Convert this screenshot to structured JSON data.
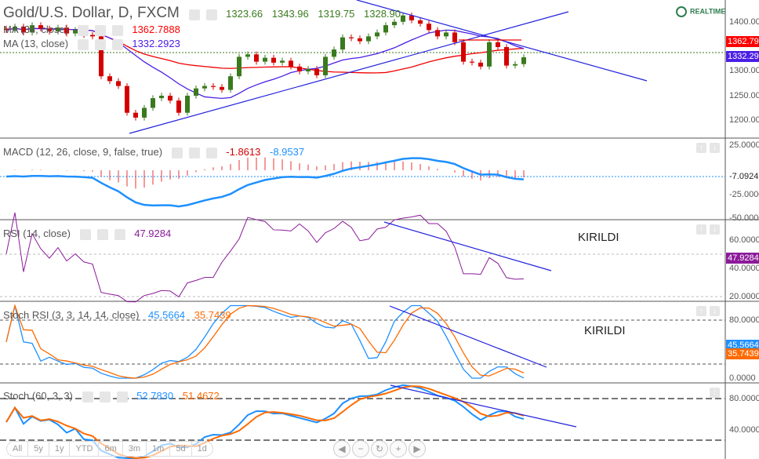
{
  "header": {
    "title": "Gold/U.S. Dollar, D, FXCM",
    "open": "1323.66",
    "high": "1343.96",
    "low": "1319.75",
    "close": "1328.90",
    "realtime": "REALTIME"
  },
  "ma34": {
    "label": "MA (34, close)",
    "value": "1362.7888",
    "tag": "1362.79"
  },
  "ma13": {
    "label": "MA (13, close)",
    "value": "1332.2923",
    "tag": "1332.29"
  },
  "macd": {
    "label": "MACD (12, 26, close, 9, false, true)",
    "hist": "-1.8613",
    "macd": "-8.9537",
    "tag": "-7.0924"
  },
  "rsi": {
    "label": "RSI (14, close)",
    "value": "47.9284",
    "tag": "47.9284"
  },
  "stochrsi": {
    "label": "Stoch RSI (3, 3, 14, 14, close)",
    "k": "45.5664",
    "d": "35.7439",
    "tagk": "45.5664",
    "tagd": "35.7439"
  },
  "stoch": {
    "label": "Stoch (60, 3, 3)",
    "k": "52.7830",
    "d": "51.4672"
  },
  "annotations": {
    "rsi": "KIRILDI",
    "stochrsi": "KIRILDI"
  },
  "ranges": [
    "All",
    "5y",
    "1y",
    "YTD",
    "6m",
    "3m",
    "1m",
    "5d",
    "1d"
  ],
  "nav": [
    "◀",
    "−",
    "↻",
    "+",
    "▶"
  ],
  "colors": {
    "up": "#3a7a1e",
    "down": "#d40000",
    "ma34": "#f00000",
    "ma13": "#4b1ee6",
    "macd": "#1e90ff",
    "rsi": "#8b1a9a",
    "stochk": "#1e90ff",
    "stochd": "#ff6a00",
    "trend": "#2222dd"
  },
  "chart_data": {
    "type": "candlestick",
    "title": "Gold/U.S. Dollar, D, FXCM",
    "price_axis_ticks": [
      "1400.0000",
      "1300.0000",
      "1250.0000",
      "1200.0000"
    ],
    "macd_axis_ticks": [
      "25.0000",
      "-25.0000",
      "-50.0000"
    ],
    "rsi_axis_ticks": [
      "60.0000",
      "40.0000",
      "20.0000"
    ],
    "stochrsi_axis_ticks": [
      "80.0000",
      "0.0000"
    ],
    "stoch_axis_ticks": [
      "80.0000",
      "40.0000"
    ],
    "ylim": [
      1160,
      1450
    ],
    "closes": [
      1385,
      1392,
      1380,
      1395,
      1388,
      1382,
      1390,
      1378,
      1385,
      1375,
      1372,
      1290,
      1280,
      1270,
      1215,
      1205,
      1225,
      1245,
      1250,
      1240,
      1215,
      1250,
      1265,
      1270,
      1268,
      1262,
      1290,
      1330,
      1335,
      1320,
      1328,
      1318,
      1322,
      1310,
      1300,
      1305,
      1292,
      1330,
      1345,
      1370,
      1368,
      1362,
      1372,
      1380,
      1395,
      1402,
      1415,
      1405,
      1398,
      1385,
      1372,
      1380,
      1360,
      1320,
      1318,
      1310,
      1360,
      1350,
      1312,
      1315,
      1329
    ]
  }
}
